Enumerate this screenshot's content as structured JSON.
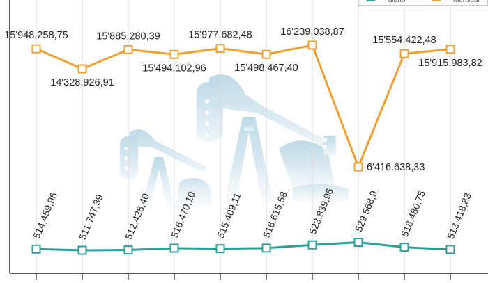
{
  "chart_data": {
    "type": "line",
    "categories": [
      "",
      "",
      "",
      "",
      "",
      "",
      "",
      "",
      "",
      ""
    ],
    "series": [
      {
        "name": "mensual",
        "color": "#F0A030",
        "values": [
          15948258.75,
          14328926.91,
          15885280.39,
          15494102.96,
          15977682.48,
          15498467.4,
          16239038.87,
          6416638.33,
          15554422.48,
          15915983.82
        ],
        "labels": [
          "15'948.258,75",
          "14'328.926,91",
          "15'885.280,39",
          "15'494.102,96",
          "15'977.682,48",
          "15'498.467,40",
          "16'239.038,87",
          "6'416.638,33",
          "15'554.422,48",
          "15'915.983,82"
        ]
      },
      {
        "name": "diario",
        "color": "#2AA198",
        "values": [
          514459.96,
          511747.39,
          512428.4,
          516470.1,
          515409.11,
          516615.58,
          523839.96,
          529568.9,
          518480.75,
          513418.83
        ],
        "labels": [
          "514,459,96",
          "511.747,39",
          "512.428,40",
          "516.470,10",
          "515.409,11",
          "516.615,58",
          "523.839,96",
          "529.568,9",
          "518.480,75",
          "513.418,83"
        ]
      }
    ],
    "legend": {
      "placement": "top-right"
    },
    "grid": true,
    "title": "",
    "xlabel": "",
    "ylabel": "",
    "background_image": "oil-pumpjack-silhouette"
  }
}
